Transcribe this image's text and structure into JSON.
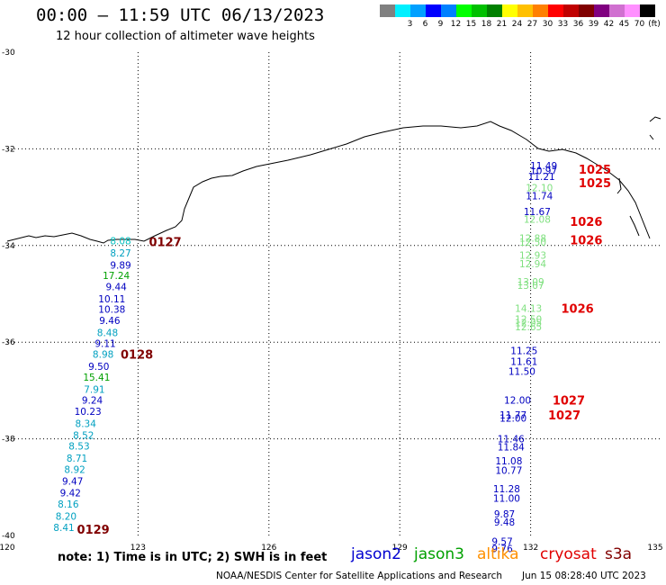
{
  "header": {
    "title": "00:00 — 11:59 UTC 06/13/2023",
    "subtitle": "12 hour collection of altimeter wave heights"
  },
  "legend": {
    "unit": "(ft)",
    "colors": [
      "#808080",
      "#00f0ff",
      "#00a0ff",
      "#0000ff",
      "#0080ff",
      "#00ff00",
      "#00c000",
      "#008000",
      "#ffff00",
      "#ffc000",
      "#ff8000",
      "#ff0000",
      "#c00000",
      "#800000",
      "#800080",
      "#d070d0",
      "#ff90ff",
      "#000000"
    ],
    "labels": [
      "",
      "3",
      "6",
      "9",
      "12",
      "15",
      "18",
      "21",
      "24",
      "27",
      "30",
      "33",
      "36",
      "39",
      "42",
      "45",
      "70"
    ]
  },
  "axes": {
    "lat_labels": [
      "-30",
      "-32",
      "-34",
      "-36",
      "-38",
      "-40"
    ],
    "lon_labels": [
      "120",
      "123",
      "126",
      "129",
      "132",
      "135"
    ]
  },
  "tracks": {
    "west": [
      {
        "v": "8.08",
        "c": "#00c0c0",
        "lon": 122.6,
        "lat": -33.9
      },
      {
        "v": "8.27",
        "c": "#00a0c0",
        "lon": 122.6,
        "lat": -34.15
      },
      {
        "v": "9.89",
        "c": "#0000c0",
        "lon": 122.6,
        "lat": -34.4
      },
      {
        "v": "17.24",
        "c": "#00a000",
        "lon": 122.5,
        "lat": -34.62
      },
      {
        "v": "9.44",
        "c": "#0000c0",
        "lon": 122.5,
        "lat": -34.85
      },
      {
        "v": "10.11",
        "c": "#0000c0",
        "lon": 122.4,
        "lat": -35.1
      },
      {
        "v": "10.38",
        "c": "#0000c0",
        "lon": 122.4,
        "lat": -35.32
      },
      {
        "v": "9.46",
        "c": "#0000c0",
        "lon": 122.35,
        "lat": -35.55
      },
      {
        "v": "8.48",
        "c": "#00a0c0",
        "lon": 122.3,
        "lat": -35.8
      },
      {
        "v": "9.11",
        "c": "#0000c0",
        "lon": 122.25,
        "lat": -36.02
      },
      {
        "v": "8.98",
        "c": "#00a0c0",
        "lon": 122.2,
        "lat": -36.25
      },
      {
        "v": "9.50",
        "c": "#0000c0",
        "lon": 122.1,
        "lat": -36.5
      },
      {
        "v": "15.41",
        "c": "#00a000",
        "lon": 122.05,
        "lat": -36.72
      },
      {
        "v": "7.91",
        "c": "#00a0c0",
        "lon": 122.0,
        "lat": -36.97
      },
      {
        "v": "9.24",
        "c": "#0000c0",
        "lon": 121.95,
        "lat": -37.2
      },
      {
        "v": "10.23",
        "c": "#0000c0",
        "lon": 121.85,
        "lat": -37.43
      },
      {
        "v": "8.34",
        "c": "#00a0c0",
        "lon": 121.8,
        "lat": -37.68
      },
      {
        "v": "8.52",
        "c": "#00a0c0",
        "lon": 121.75,
        "lat": -37.92
      },
      {
        "v": "8.53",
        "c": "#00a0c0",
        "lon": 121.65,
        "lat": -38.15
      },
      {
        "v": "8.71",
        "c": "#00a0c0",
        "lon": 121.6,
        "lat": -38.4
      },
      {
        "v": "8.92",
        "c": "#00a0c0",
        "lon": 121.55,
        "lat": -38.63
      },
      {
        "v": "9.47",
        "c": "#0000c0",
        "lon": 121.5,
        "lat": -38.87
      },
      {
        "v": "9.42",
        "c": "#0000c0",
        "lon": 121.45,
        "lat": -39.12
      },
      {
        "v": "8.16",
        "c": "#00a0c0",
        "lon": 121.4,
        "lat": -39.35
      },
      {
        "v": "8.20",
        "c": "#00a0c0",
        "lon": 121.35,
        "lat": -39.6
      },
      {
        "v": "8.41",
        "c": "#00a0c0",
        "lon": 121.3,
        "lat": -39.83
      }
    ],
    "east": [
      {
        "v": "11.49",
        "c": "#0000c0",
        "lon": 132.3,
        "lat": -32.35
      },
      {
        "v": "10.97",
        "c": "#0000c0",
        "lon": 132.3,
        "lat": -32.45
      },
      {
        "v": "11.21",
        "c": "#0000c0",
        "lon": 132.25,
        "lat": -32.57
      },
      {
        "v": "12.10",
        "c": "#80e080",
        "lon": 132.2,
        "lat": -32.8
      },
      {
        "v": "11.74",
        "c": "#0000c0",
        "lon": 132.2,
        "lat": -32.97
      },
      {
        "v": "11.67",
        "c": "#0000c0",
        "lon": 132.15,
        "lat": -33.3
      },
      {
        "v": "12.08",
        "c": "#80e080",
        "lon": 132.15,
        "lat": -33.45
      },
      {
        "v": "12.88",
        "c": "#80e080",
        "lon": 132.05,
        "lat": -33.85
      },
      {
        "v": "12.50",
        "c": "#80e080",
        "lon": 132.05,
        "lat": -33.93
      },
      {
        "v": "12.93",
        "c": "#80e080",
        "lon": 132.05,
        "lat": -34.2
      },
      {
        "v": "12.94",
        "c": "#80e080",
        "lon": 132.05,
        "lat": -34.38
      },
      {
        "v": "13.09",
        "c": "#80e080",
        "lon": 132.0,
        "lat": -34.75
      },
      {
        "v": "13.07",
        "c": "#80e080",
        "lon": 132.0,
        "lat": -34.82
      },
      {
        "v": "14.13",
        "c": "#80e080",
        "lon": 131.95,
        "lat": -35.3
      },
      {
        "v": "12.50",
        "c": "#80e080",
        "lon": 131.95,
        "lat": -35.52
      },
      {
        "v": "12.05",
        "c": "#80e080",
        "lon": 131.95,
        "lat": -35.6
      },
      {
        "v": "12.65",
        "c": "#80e080",
        "lon": 131.95,
        "lat": -35.68
      },
      {
        "v": "11.25",
        "c": "#0000c0",
        "lon": 131.85,
        "lat": -36.17
      },
      {
        "v": "11.61",
        "c": "#0000c0",
        "lon": 131.85,
        "lat": -36.4
      },
      {
        "v": "11.50",
        "c": "#0000c0",
        "lon": 131.8,
        "lat": -36.6
      },
      {
        "v": "12.00",
        "c": "#0000c0",
        "lon": 131.7,
        "lat": -37.2
      },
      {
        "v": "11.77",
        "c": "#0000c0",
        "lon": 131.6,
        "lat": -37.5
      },
      {
        "v": "12.00",
        "c": "#0000c0",
        "lon": 131.6,
        "lat": -37.57
      },
      {
        "v": "11.46",
        "c": "#0000c0",
        "lon": 131.55,
        "lat": -38.0
      },
      {
        "v": "11.84",
        "c": "#0000c0",
        "lon": 131.55,
        "lat": -38.17
      },
      {
        "v": "11.08",
        "c": "#0000c0",
        "lon": 131.5,
        "lat": -38.45
      },
      {
        "v": "10.77",
        "c": "#0000c0",
        "lon": 131.5,
        "lat": -38.65
      },
      {
        "v": "11.28",
        "c": "#0000c0",
        "lon": 131.45,
        "lat": -39.03
      },
      {
        "v": "11.00",
        "c": "#0000c0",
        "lon": 131.45,
        "lat": -39.23
      },
      {
        "v": "9.87",
        "c": "#0000c0",
        "lon": 131.4,
        "lat": -39.55
      },
      {
        "v": "9.48",
        "c": "#0000c0",
        "lon": 131.4,
        "lat": -39.72
      },
      {
        "v": "9.57",
        "c": "#0000c0",
        "lon": 131.35,
        "lat": -40.12
      },
      {
        "v": "9.76",
        "c": "#0000c0",
        "lon": 131.35,
        "lat": -40.27
      }
    ]
  },
  "time_labels": [
    {
      "t": "0127",
      "c": "#800000",
      "lon": 123.25,
      "lat": -33.92
    },
    {
      "t": "0128",
      "c": "#800000",
      "lon": 122.6,
      "lat": -36.25
    },
    {
      "t": "0129",
      "c": "#800000",
      "lon": 121.6,
      "lat": -39.87
    },
    {
      "t": "1025",
      "c": "#e00000",
      "lon": 133.1,
      "lat": -32.42
    },
    {
      "t": "1025",
      "c": "#e00000",
      "lon": 133.1,
      "lat": -32.7
    },
    {
      "t": "1026",
      "c": "#e00000",
      "lon": 132.9,
      "lat": -33.5
    },
    {
      "t": "1026",
      "c": "#e00000",
      "lon": 132.9,
      "lat": -33.88
    },
    {
      "t": "1026",
      "c": "#e00000",
      "lon": 132.7,
      "lat": -35.3
    },
    {
      "t": "1027",
      "c": "#e00000",
      "lon": 132.5,
      "lat": -37.2
    },
    {
      "t": "1027",
      "c": "#e00000",
      "lon": 132.4,
      "lat": -37.5
    }
  ],
  "note": "note:  1) Time is in UTC; 2) SWH is in feet",
  "satellites": [
    {
      "name": "jason2",
      "color": "#0000d0"
    },
    {
      "name": "jason3",
      "color": "#00a000"
    },
    {
      "name": "altika",
      "color": "#ff9000"
    },
    {
      "name": "cryosat",
      "color": "#e00000"
    },
    {
      "name": "s3a",
      "color": "#800000"
    }
  ],
  "footer": {
    "left": "NOAA/NESDIS Center for Satellite Applications and Research",
    "right": "Jun 15 08:28:40 UTC 2023"
  }
}
